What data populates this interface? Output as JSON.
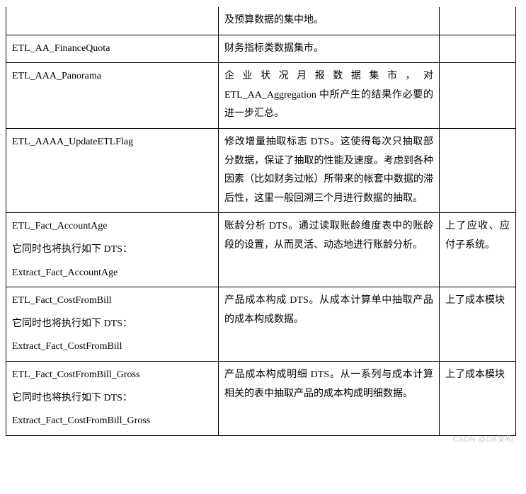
{
  "table": {
    "rows": [
      {
        "c1": "",
        "c2": "及预算数据的集中地。",
        "c3": ""
      },
      {
        "c1": "ETL_AA_FinanceQuota",
        "c2": "财务指标类数据集市。",
        "c3": ""
      },
      {
        "c1": "ETL_AAA_Panorama",
        "c2_prefix": "企业状况月报数据集市，对 ",
        "c2_en": "ETL_AA_Aggregation",
        "c2_suffix": " 中所产生的结果作必要的进一步汇总。",
        "c3": ""
      },
      {
        "c1": "ETL_AAAA_UpdateETLFlag",
        "c2": "修改增量抽取标志 DTS。这使得每次只抽取部分数据，保证了抽取的性能及速度。考虑到各种因素（比如财务过帐）所带来的帐套中数据的滞后性，这里一般回溯三个月进行数据的抽取。",
        "c3": ""
      },
      {
        "c1_a": "ETL_Fact_AccountAge",
        "c1_mid": "它同时也将执行如下 DTS：",
        "c1_b": "Extract_Fact_AccountAge",
        "c2": "账龄分析 DTS。通过读取账龄维度表中的账龄段的设置，从而灵活、动态地进行账龄分析。",
        "c3": "上了应收、应付子系统。"
      },
      {
        "c1_a": "ETL_Fact_CostFromBill",
        "c1_mid": "它同时也将执行如下 DTS：",
        "c1_b": "Extract_Fact_CostFromBill",
        "c2": "产品成本构成 DTS。从成本计算单中抽取产品的成本构成数据。",
        "c3": "上了成本模块"
      },
      {
        "c1_a": "ETL_Fact_CostFromBill_Gross",
        "c1_mid": "它同时也将执行如下 DTS：",
        "c1_b": "Extract_Fact_CostFromBill_Gross",
        "c2": "产品成本构成明细 DTS。从一系列与成本计算相关的表中抽取产品的成本构成明细数据。",
        "c3": "上了成本模块"
      }
    ]
  },
  "watermark": "CSDN @DB架构"
}
